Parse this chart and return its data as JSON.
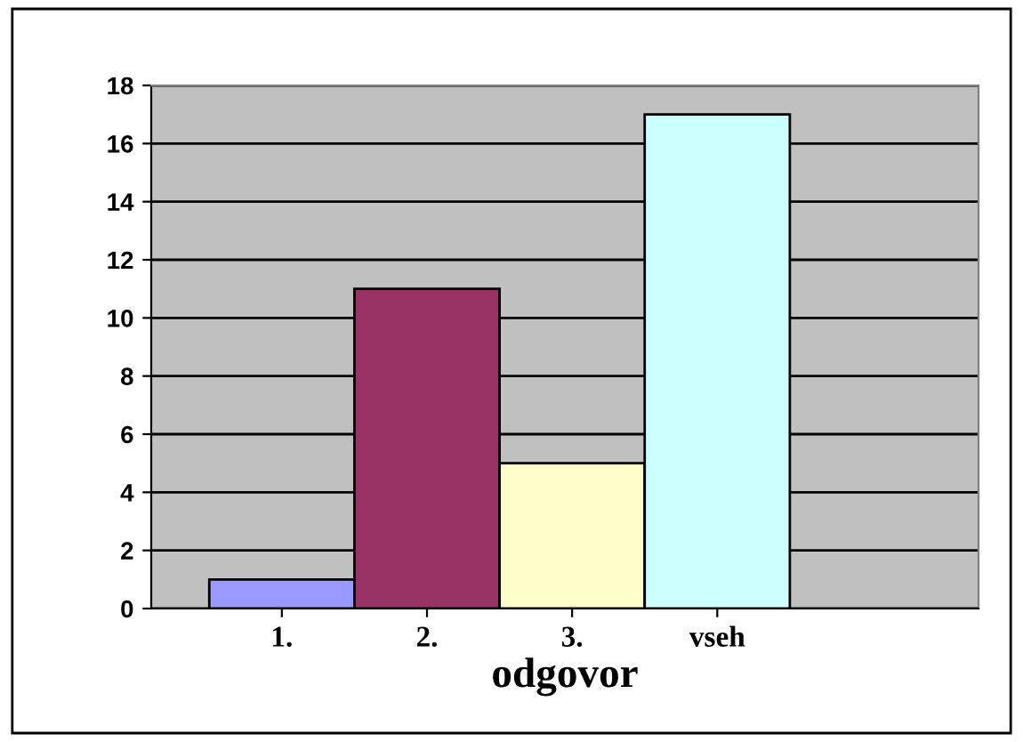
{
  "chart_data": {
    "type": "bar",
    "xlabel": "odgovor",
    "categories": [
      "1.",
      "2.",
      "3.",
      "vseh"
    ],
    "values": [
      1,
      11,
      5,
      17
    ],
    "colors": [
      "#9999ff",
      "#993366",
      "#ffffcc",
      "#ccffff"
    ],
    "ylim": [
      0,
      18
    ],
    "yticks": [
      0,
      2,
      4,
      6,
      8,
      10,
      12,
      14,
      16,
      18
    ],
    "grid": "y",
    "legend": false
  }
}
